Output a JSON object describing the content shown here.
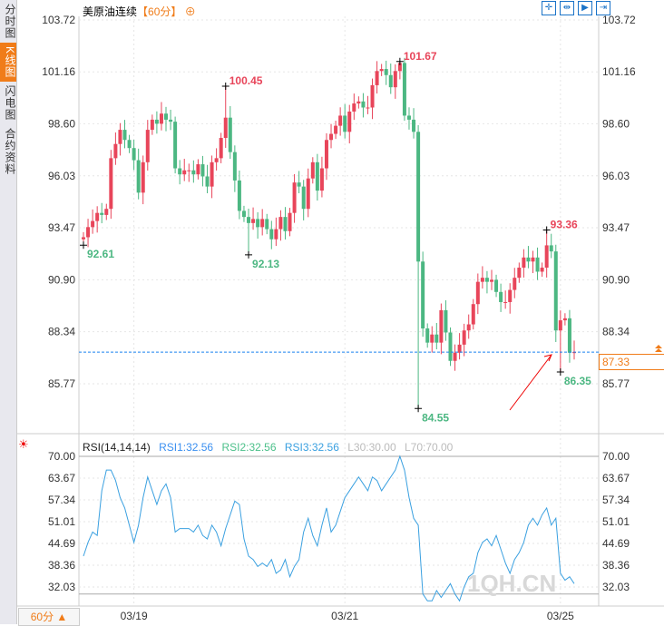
{
  "sidebar": {
    "tabs": [
      "分时图",
      "K线图",
      "闪电图",
      "合约资料"
    ],
    "active": 1
  },
  "header": {
    "title": "美原油连续",
    "period": "【60分】",
    "add_icon": "plus-circle-icon"
  },
  "toolbar": {
    "icons": [
      "crosshair-icon",
      "range-icon",
      "zoom-icon",
      "exit-icon"
    ]
  },
  "current_price": "87.33",
  "rsi_header": {
    "name": "RSI(14,14,14)",
    "rsi1": "RSI1:32.56",
    "rsi2": "RSI2:32.56",
    "rsi3": "RSI3:32.56",
    "l30": "L30:30.00",
    "l70": "L70:70.00"
  },
  "period_button": "60分 ▲",
  "watermark": "1QH.CN",
  "colors": {
    "up": "#e8455a",
    "down": "#4cb782",
    "rsi": "#3aa0e0",
    "accent": "#f07c19",
    "line": "#1a82f0"
  },
  "chart_data": [
    {
      "type": "candlestick",
      "title": "美原油连续 60分",
      "y_ticks": [
        "103.72",
        "101.16",
        "98.60",
        "96.03",
        "93.47",
        "90.90",
        "88.34",
        "85.77"
      ],
      "ylim": [
        83.8,
        104.2
      ],
      "x_ticks": [
        {
          "label": "03/19",
          "index": 11
        },
        {
          "label": "03/21",
          "index": 57
        },
        {
          "label": "03/25",
          "index": 104
        }
      ],
      "open_first": 92.9,
      "close": [
        93.0,
        93.5,
        93.8,
        94.2,
        94.1,
        94.4,
        96.9,
        97.6,
        98.3,
        97.8,
        97.4,
        96.8,
        95.2,
        96.7,
        98.3,
        98.8,
        98.6,
        99.1,
        98.8,
        98.7,
        96.4,
        96.1,
        96.3,
        96.3,
        96.1,
        96.6,
        96.0,
        95.5,
        96.7,
        96.9,
        97.9,
        98.9,
        97.2,
        95.8,
        94.3,
        94.0,
        93.7,
        93.9,
        93.5,
        93.9,
        93.4,
        92.9,
        93.4,
        94.0,
        93.3,
        94.2,
        95.7,
        95.5,
        94.4,
        95.9,
        96.7,
        95.3,
        96.4,
        97.8,
        98.1,
        98.5,
        99.0,
        98.2,
        99.2,
        99.6,
        99.7,
        99.4,
        99.4,
        100.5,
        101.2,
        101.3,
        101.0,
        100.4,
        101.2,
        101.6,
        99.0,
        98.8,
        98.2,
        91.8,
        88.5,
        87.8,
        88.2,
        87.8,
        89.4,
        88.3,
        86.9,
        87.3,
        87.7,
        88.4,
        88.7,
        89.7,
        90.8,
        91.0,
        90.8,
        90.9,
        90.3,
        89.8,
        89.8,
        90.4,
        91.0,
        91.5,
        92.0,
        91.8,
        92.0,
        91.3,
        91.5,
        92.6,
        92.3,
        88.4,
        88.9,
        89.0,
        87.3,
        87.33
      ],
      "annotations": [
        {
          "index": 0,
          "kind": "low",
          "value": 92.61
        },
        {
          "index": 31,
          "kind": "high",
          "value": 100.45
        },
        {
          "index": 36,
          "kind": "low",
          "value": 92.13
        },
        {
          "index": 69,
          "kind": "high",
          "value": 101.67
        },
        {
          "index": 73,
          "kind": "low",
          "value": 84.55
        },
        {
          "index": 101,
          "kind": "high",
          "value": 93.36
        },
        {
          "index": 104,
          "kind": "low",
          "value": 86.35
        }
      ]
    },
    {
      "type": "line",
      "title": "RSI(14,14,14)",
      "y_ticks": [
        "70.00",
        "63.67",
        "57.34",
        "51.01",
        "44.69",
        "38.36",
        "32.03"
      ],
      "ylim": [
        28,
        71
      ],
      "ref_lines": [
        30,
        70
      ],
      "values": [
        41,
        45,
        48,
        47,
        60,
        66,
        66,
        63,
        58,
        55,
        50,
        45,
        50,
        58,
        64,
        60,
        56,
        60,
        62,
        58,
        48,
        49,
        49,
        49,
        48,
        50,
        47,
        46,
        50,
        48,
        44,
        49,
        53,
        57,
        56,
        46,
        41,
        40,
        38,
        39,
        38,
        40,
        36,
        37,
        40,
        35,
        38,
        40,
        48,
        52,
        47,
        44,
        50,
        55,
        48,
        50,
        54,
        58,
        60,
        62,
        64,
        62,
        60,
        64,
        63,
        60,
        62,
        64,
        66,
        70,
        66,
        58,
        52,
        50,
        30,
        28,
        28,
        31,
        29,
        31,
        33,
        30,
        28,
        32,
        35,
        36,
        42,
        45,
        46,
        44,
        47,
        43,
        39,
        36,
        40,
        42,
        45,
        50,
        52,
        50,
        53,
        55,
        50,
        52,
        36,
        34,
        35,
        33
      ]
    }
  ]
}
